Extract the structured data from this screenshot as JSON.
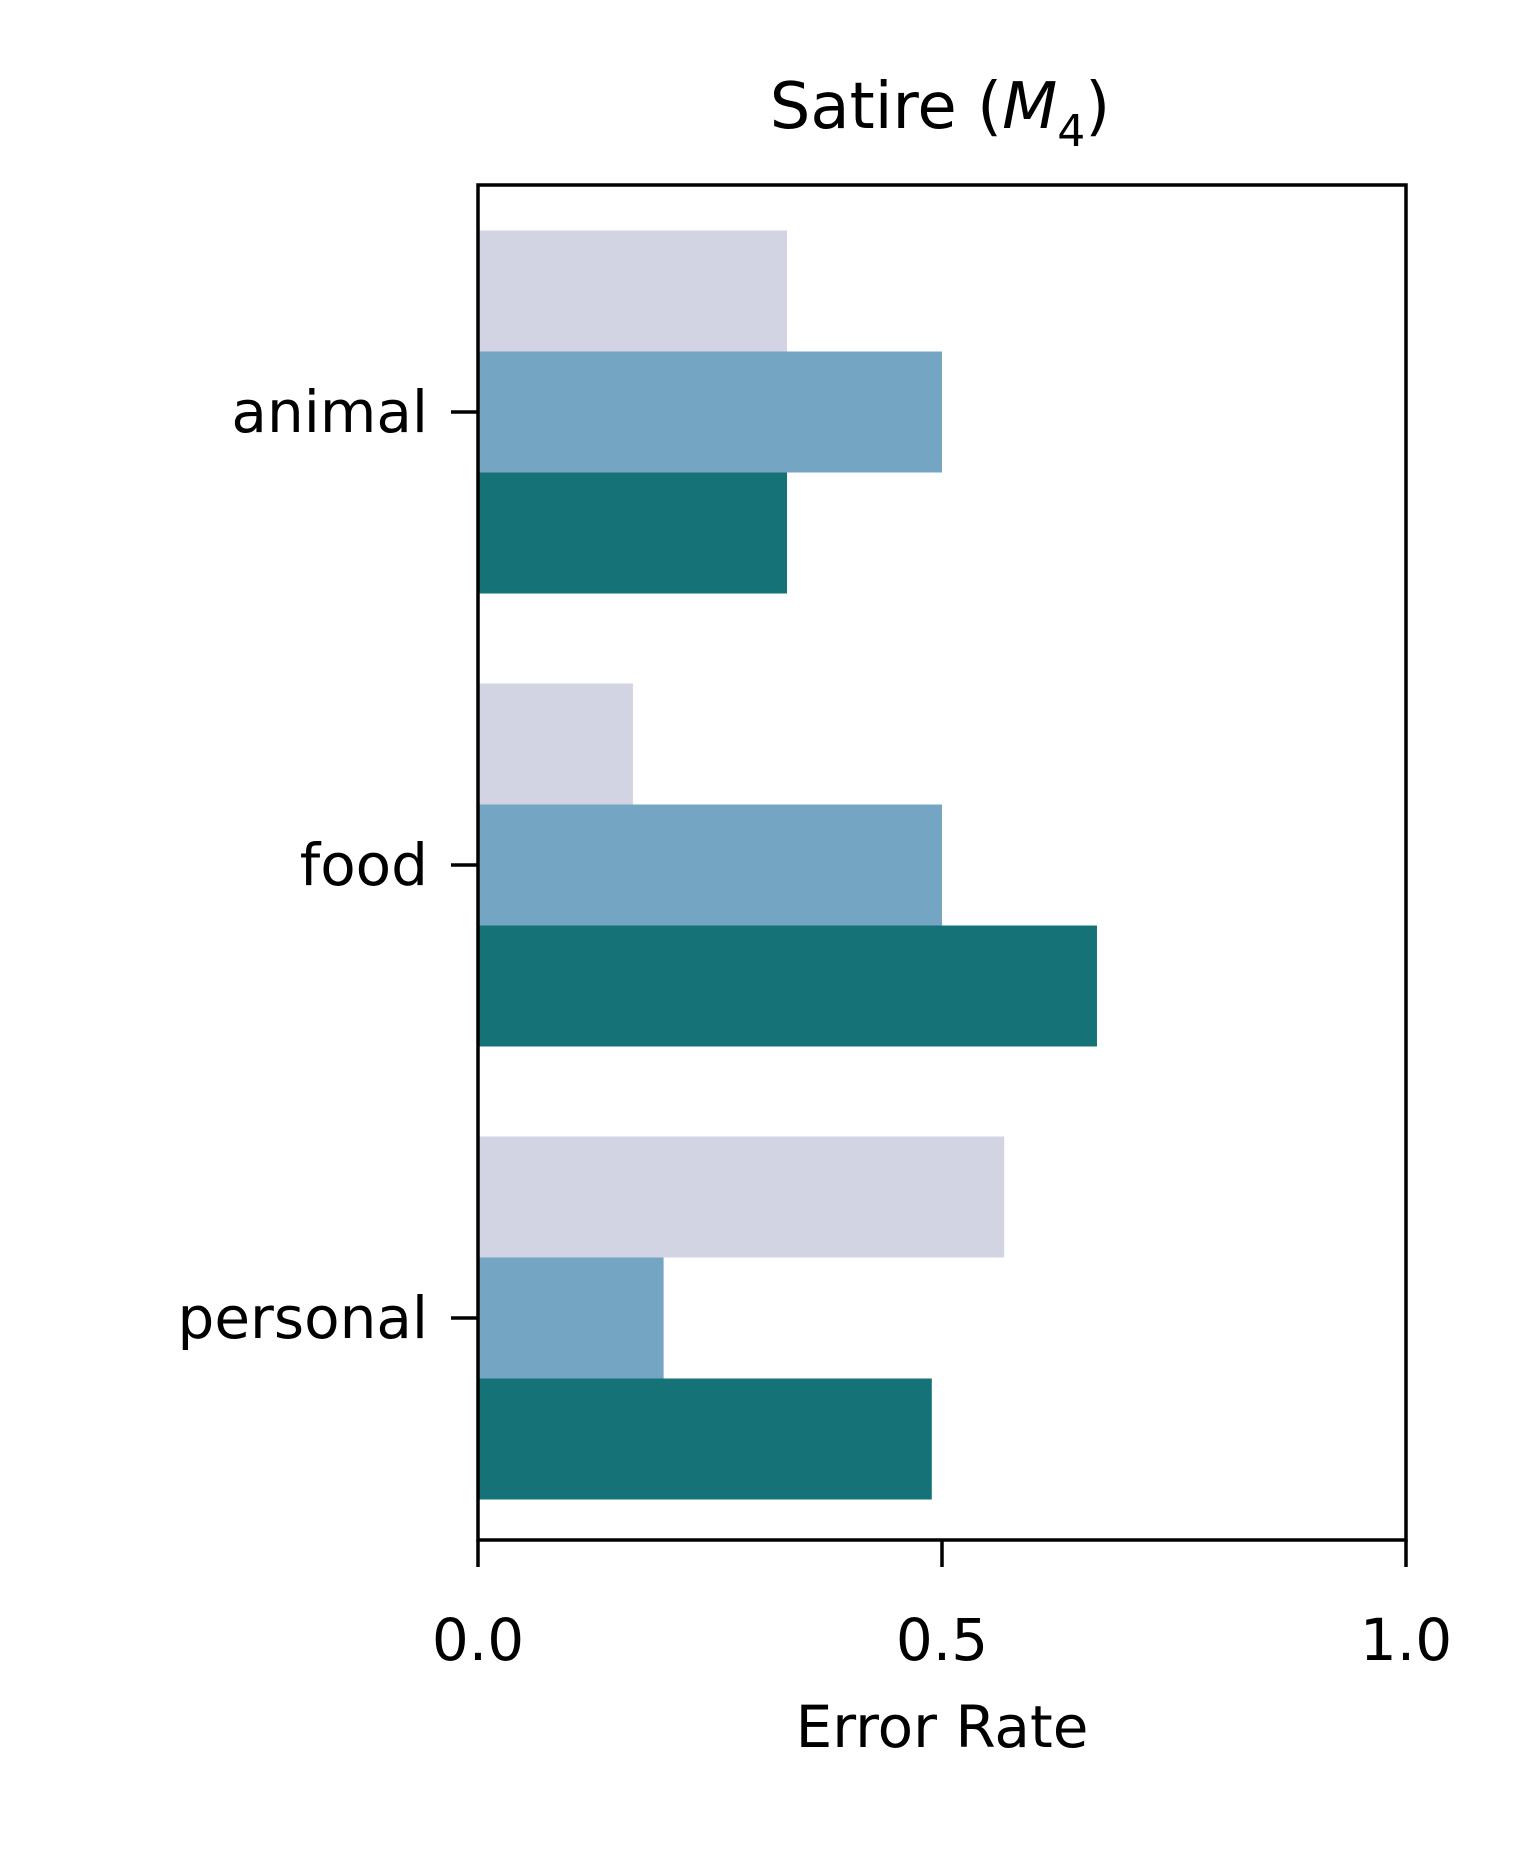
{
  "chart_data": {
    "type": "bar",
    "orientation": "horizontal",
    "title": {
      "prefix": "Satire (",
      "math_symbol": "M",
      "math_subscript": "4",
      "suffix": ")"
    },
    "xlabel": "Error Rate",
    "ylabel": "",
    "xlim": [
      0.0,
      1.0
    ],
    "xticks": [
      0.0,
      0.5,
      1.0
    ],
    "xtick_labels": [
      "0.0",
      "0.5",
      "1.0"
    ],
    "categories": [
      "animal",
      "food",
      "personal"
    ],
    "series": [
      {
        "color": "#d3d4e3",
        "values": [
          0.333,
          0.167,
          0.567
        ]
      },
      {
        "color": "#74a5c3",
        "values": [
          0.5,
          0.5,
          0.2
        ]
      },
      {
        "color": "#157277",
        "values": [
          0.333,
          0.667,
          0.489
        ]
      }
    ],
    "grid": false,
    "legend": "none"
  }
}
